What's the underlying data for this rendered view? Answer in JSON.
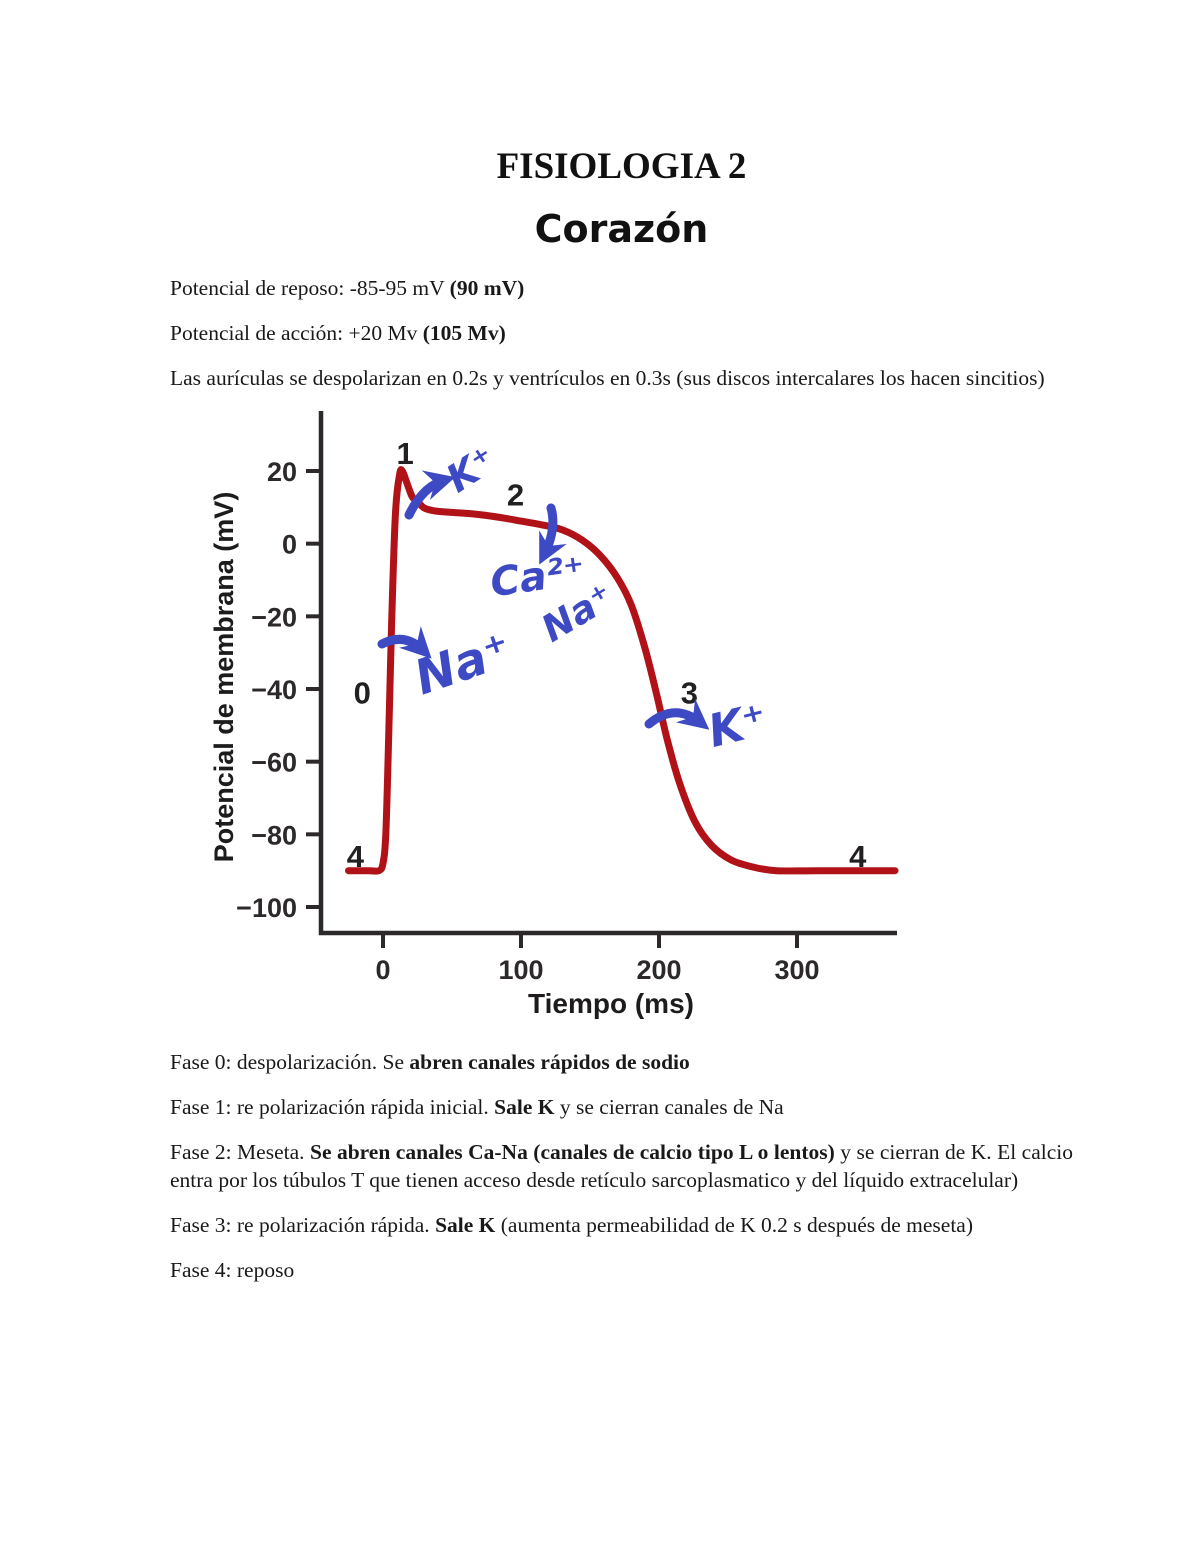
{
  "page": {
    "title": "FISIOLOGIA 2",
    "subtitle": "Corazón"
  },
  "intro": {
    "line1_normal": "Potencial de reposo: -85-95 mV ",
    "line1_bold": "(90 mV)",
    "line2_normal": "Potencial de acción: +20 Mv ",
    "line2_bold": "(105 Mv)",
    "line3": "Las aurículas se despolarizan en 0.2s y ventrículos en 0.3s (sus discos intercalares los hacen sincitios)"
  },
  "phases": [
    {
      "prefix": "Fase 0: despolarización. Se ",
      "bold": "abren canales rápidos de sodio",
      "suffix": ""
    },
    {
      "prefix": "Fase 1: re polarización rápida inicial. ",
      "bold": "Sale K",
      "suffix": " y se cierran canales de Na"
    },
    {
      "prefix": "Fase 2: Meseta. ",
      "bold": "Se abren  canales Ca-Na (canales de calcio tipo L o lentos)",
      "suffix": " y se cierran de K. El calcio entra por los túbulos T que tienen acceso desde retículo sarcoplasmatico y del líquido extracelular)"
    },
    {
      "prefix": "Fase 3: re polarización rápida. ",
      "bold": "Sale K",
      "suffix": " (aumenta permeabilidad de K 0.2 s después de meseta)"
    },
    {
      "prefix": "Fase 4: reposo",
      "bold": "",
      "suffix": ""
    }
  ],
  "chart_data": {
    "type": "line",
    "title": "",
    "xlabel": "Tiempo (ms)",
    "ylabel": "Potencial de membrana (mV)",
    "xlim": [
      -30,
      372
    ],
    "ylim": [
      -104,
      26
    ],
    "xticks": [
      0,
      100,
      200,
      300
    ],
    "yticks": [
      20,
      0,
      -20,
      -40,
      -60,
      -80,
      -100
    ],
    "grid": false,
    "legend": "none",
    "axis_color": "#2d292a",
    "curve_color": "#b01218",
    "annotation_color": "#3e49c4",
    "series": [
      {
        "name": "potencial de accion ventricular",
        "points": [
          [
            -25,
            -90
          ],
          [
            -10,
            -90
          ],
          [
            -3,
            -90
          ],
          [
            0,
            -88
          ],
          [
            2,
            -80
          ],
          [
            4,
            -55
          ],
          [
            6,
            -25
          ],
          [
            9,
            8
          ],
          [
            12,
            19
          ],
          [
            14,
            20
          ],
          [
            17,
            17
          ],
          [
            21,
            13
          ],
          [
            24,
            12
          ],
          [
            30,
            9.8
          ],
          [
            38,
            9
          ],
          [
            50,
            8.6
          ],
          [
            65,
            8.2
          ],
          [
            85,
            7.2
          ],
          [
            100,
            6.2
          ],
          [
            115,
            5.2
          ],
          [
            130,
            3.8
          ],
          [
            145,
            0.8
          ],
          [
            158,
            -3.5
          ],
          [
            170,
            -9.5
          ],
          [
            180,
            -17
          ],
          [
            190,
            -29
          ],
          [
            198,
            -41
          ],
          [
            206,
            -54
          ],
          [
            215,
            -66
          ],
          [
            226,
            -76.5
          ],
          [
            238,
            -83
          ],
          [
            252,
            -87
          ],
          [
            268,
            -89
          ],
          [
            285,
            -90
          ],
          [
            315,
            -90
          ],
          [
            371,
            -90
          ]
        ]
      }
    ],
    "phase_labels": [
      {
        "text": "0",
        "t": -15,
        "mv": -41
      },
      {
        "text": "1",
        "t": 16,
        "mv": 25
      },
      {
        "text": "2",
        "t": 96,
        "mv": 13.5
      },
      {
        "text": "3",
        "t": 222,
        "mv": -41
      },
      {
        "text": "4",
        "t": -20,
        "mv": -86
      },
      {
        "text": "4",
        "t": 344,
        "mv": -86
      }
    ],
    "ion_annotations": [
      {
        "label": "K⁺",
        "phase": "1",
        "t": 64,
        "mv": 20.5,
        "rotate": -33,
        "size": 38
      },
      {
        "label": "Ca²⁺",
        "phase": "2",
        "t": 112,
        "mv": -9,
        "rotate": -8,
        "size": 40
      },
      {
        "label": "Na⁺",
        "phase": "2",
        "t": 141,
        "mv": -19,
        "rotate": -31,
        "size": 37
      },
      {
        "label": "Na⁺",
        "phase": "0",
        "t": 58,
        "mv": -33,
        "rotate": -19,
        "size": 48
      },
      {
        "label": "K⁺",
        "phase": "3",
        "t": 257,
        "mv": -50,
        "rotate": -14,
        "size": 45
      }
    ]
  }
}
